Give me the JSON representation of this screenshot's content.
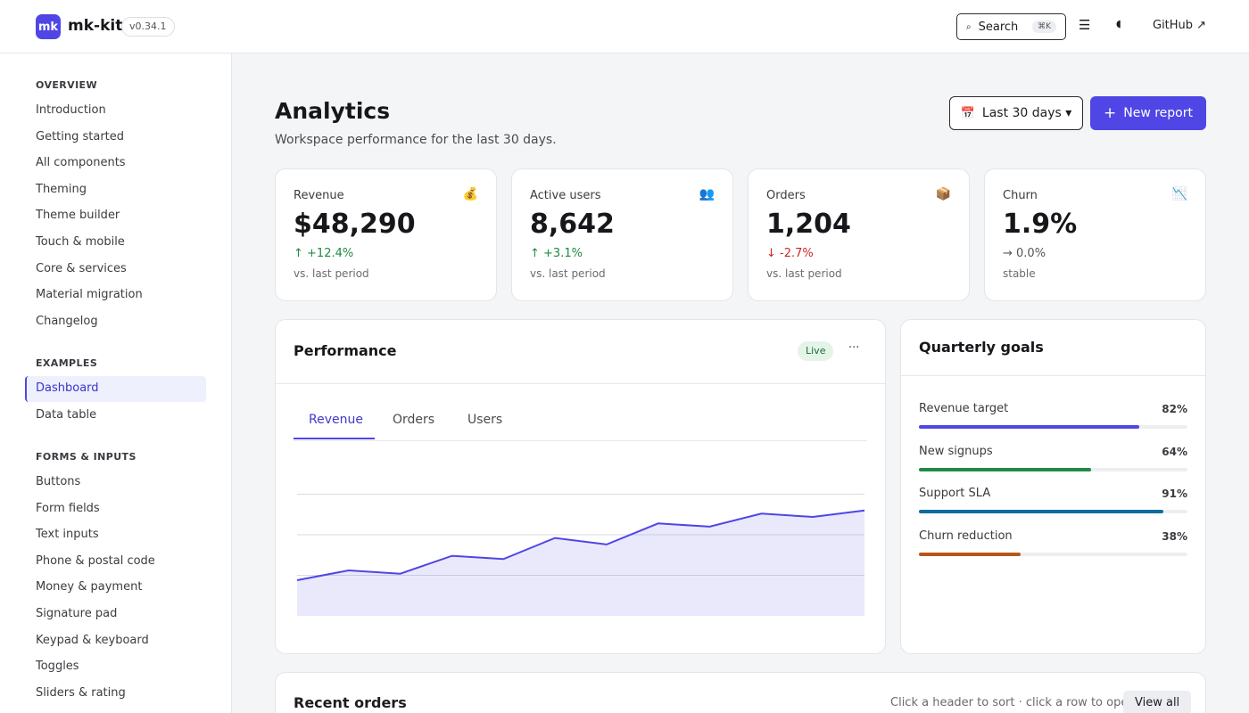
{
  "app": {
    "logo": "mk",
    "name": "mk-kit",
    "version": "v0.34.1"
  },
  "topbar": {
    "search_label": "Search",
    "search_shortcut": "⌘K",
    "github_label": "GitHub ↗"
  },
  "sidebar": {
    "sections": [
      {
        "title": "OVERVIEW",
        "items": [
          "Introduction",
          "Getting started",
          "All components",
          "Theming",
          "Theme builder",
          "Touch & mobile",
          "Core & services",
          "Material migration",
          "Changelog"
        ]
      },
      {
        "title": "EXAMPLES",
        "items": [
          "Dashboard",
          "Data table"
        ]
      },
      {
        "title": "FORMS & INPUTS",
        "items": [
          "Buttons",
          "Form fields",
          "Text inputs",
          "Phone & postal code",
          "Money & payment",
          "Signature pad",
          "Keypad & keyboard",
          "Toggles",
          "Sliders & rating"
        ]
      }
    ],
    "active_item": "Dashboard"
  },
  "page": {
    "title": "Analytics",
    "subtitle": "Workspace performance for the last 30 days.",
    "date_range": "Last 30 days ▾",
    "new_report": "New report"
  },
  "stats": [
    {
      "label": "Revenue",
      "icon": "money-bag-icon",
      "glyph": "💰",
      "value": "$48,290",
      "delta": "↑ +12.4%",
      "trend": "up",
      "note": "vs. last period"
    },
    {
      "label": "Active users",
      "icon": "users-icon",
      "glyph": "👥",
      "value": "8,642",
      "delta": "↑ +3.1%",
      "trend": "up",
      "note": "vs. last period"
    },
    {
      "label": "Orders",
      "icon": "package-icon",
      "glyph": "📦",
      "value": "1,204",
      "delta": "↓ -2.7%",
      "trend": "down",
      "note": "vs. last period"
    },
    {
      "label": "Churn",
      "icon": "chart-decreasing-icon",
      "glyph": "📉",
      "value": "1.9%",
      "delta": "→ 0.0%",
      "trend": "flat",
      "note": "stable"
    }
  ],
  "performance": {
    "title": "Performance",
    "badge": "Live",
    "more": "···",
    "tabs": [
      "Revenue",
      "Orders",
      "Users"
    ],
    "active_tab": "Revenue"
  },
  "chart_data": {
    "type": "area",
    "values": [
      0.22,
      0.28,
      0.26,
      0.37,
      0.35,
      0.48,
      0.44,
      0.57,
      0.55,
      0.63,
      0.61,
      0.65
    ],
    "ylim": [
      0,
      1
    ],
    "grid": true,
    "color": "#4f46e5"
  },
  "goals": {
    "title": "Quarterly goals",
    "items": [
      {
        "name": "Revenue target",
        "pct_label": "82%",
        "value": 82,
        "color": "#4f46e5"
      },
      {
        "name": "New signups",
        "pct_label": "64%",
        "value": 64,
        "color": "#1f8a45"
      },
      {
        "name": "Support SLA",
        "pct_label": "91%",
        "value": 91,
        "color": "#0f6aa0"
      },
      {
        "name": "Churn reduction",
        "pct_label": "38%",
        "value": 38,
        "color": "#b5561a"
      }
    ]
  },
  "recent": {
    "title": "Recent orders",
    "hint": "Click a header to sort · click a row to open",
    "view_all": "View all"
  },
  "colors": {
    "accent": "#4f46e5",
    "up": "#1f8a45",
    "down": "#c62828",
    "flat": "#555555"
  }
}
